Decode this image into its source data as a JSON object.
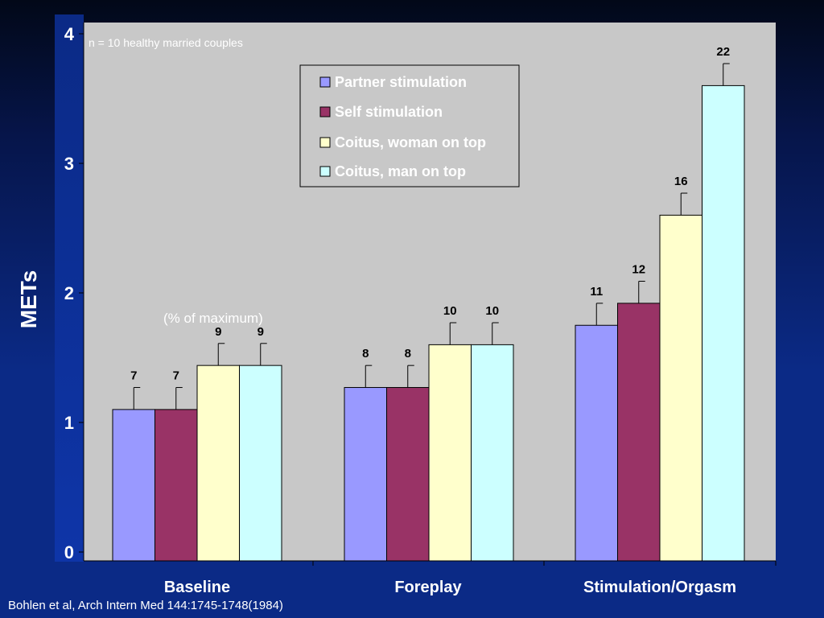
{
  "citation": "Bohlen et al, Arch Intern Med 144:1745-1748(1984)",
  "colors": {
    "plot_bg": "#c8c8c8",
    "slide_bg": "#0b2a86",
    "partner": "#9999ff",
    "self": "#993366",
    "woman_top": "#ffffcc",
    "man_top": "#ccffff"
  },
  "chart_data": {
    "type": "bar",
    "note": "n = 10 healthy married couples",
    "annotation": "(% of maximum)",
    "ylabel": "METs",
    "xlabel": "",
    "ylim": [
      0,
      4
    ],
    "yticks": [
      "0",
      "1",
      "2",
      "3",
      "4"
    ],
    "categories": [
      "Baseline",
      "Foreplay",
      "Stimulation/Orgasm"
    ],
    "series": [
      {
        "name": "Partner stimulation",
        "values": [
          1.1,
          1.27,
          1.75
        ],
        "errors": [
          0.17,
          0.17,
          0.17
        ],
        "labels": [
          "7",
          "8",
          "11"
        ]
      },
      {
        "name": "Self stimulation",
        "values": [
          1.1,
          1.27,
          1.92
        ],
        "errors": [
          0.17,
          0.17,
          0.17
        ],
        "labels": [
          "7",
          "8",
          "12"
        ]
      },
      {
        "name": "Coitus, woman on top",
        "values": [
          1.44,
          1.6,
          2.6
        ],
        "errors": [
          0.17,
          0.17,
          0.17
        ],
        "labels": [
          "9",
          "10",
          "16"
        ]
      },
      {
        "name": "Coitus, man on top",
        "values": [
          1.44,
          1.6,
          3.6
        ],
        "errors": [
          0.17,
          0.17,
          0.17
        ],
        "labels": [
          "9",
          "10",
          "22"
        ]
      }
    ],
    "legend_position": "top-center",
    "grid": false
  }
}
